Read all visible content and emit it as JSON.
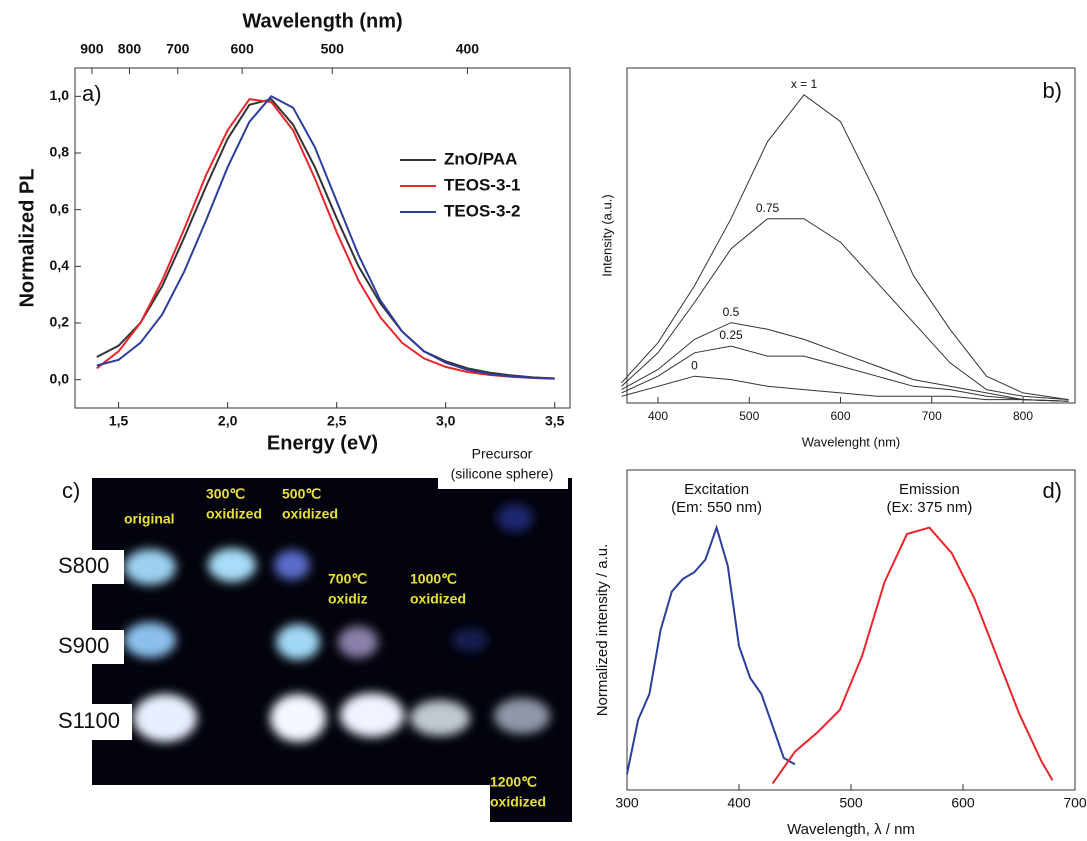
{
  "chart_data": [
    {
      "type": "line",
      "label": "a)",
      "title": "Wavelength (nm)",
      "xlabel": "Energy (eV)",
      "ylabel": "Normalized PL",
      "x": [
        1.4,
        1.5,
        1.6,
        1.7,
        1.8,
        1.9,
        2.0,
        2.1,
        2.2,
        2.3,
        2.4,
        2.5,
        2.6,
        2.7,
        2.8,
        2.9,
        3.0,
        3.1,
        3.2,
        3.3,
        3.4,
        3.5
      ],
      "series": [
        {
          "name": "ZnO/PAA",
          "color": "#333333",
          "values": [
            0.08,
            0.12,
            0.2,
            0.33,
            0.5,
            0.68,
            0.85,
            0.97,
            0.99,
            0.9,
            0.75,
            0.57,
            0.4,
            0.27,
            0.17,
            0.1,
            0.065,
            0.04,
            0.025,
            0.015,
            0.008,
            0.004
          ]
        },
        {
          "name": "TEOS-3-1",
          "color": "#e8262b",
          "values": [
            0.04,
            0.1,
            0.2,
            0.35,
            0.53,
            0.72,
            0.88,
            0.99,
            0.98,
            0.88,
            0.71,
            0.52,
            0.35,
            0.22,
            0.13,
            0.075,
            0.045,
            0.027,
            0.017,
            0.01,
            0.006,
            0.003
          ]
        },
        {
          "name": "TEOS-3-2",
          "color": "#2c3e9c",
          "values": [
            0.05,
            0.07,
            0.13,
            0.23,
            0.38,
            0.56,
            0.75,
            0.91,
            1.0,
            0.96,
            0.82,
            0.63,
            0.44,
            0.28,
            0.17,
            0.1,
            0.06,
            0.035,
            0.02,
            0.012,
            0.007,
            0.004
          ]
        }
      ],
      "xlim": [
        1.3,
        3.57
      ],
      "ylim": [
        -0.1,
        1.1
      ],
      "xticks": [
        {
          "value": 1.5,
          "label": "1,5"
        },
        {
          "value": 2.0,
          "label": "2,0"
        },
        {
          "value": 2.5,
          "label": "2,5"
        },
        {
          "value": 3.0,
          "label": "3,0"
        },
        {
          "value": 3.5,
          "label": "3,5"
        }
      ],
      "yticks": [
        {
          "value": 0,
          "label": "0,0"
        },
        {
          "value": 0.2,
          "label": "0,2"
        },
        {
          "value": 0.4,
          "label": "0,4"
        },
        {
          "value": 0.6,
          "label": "0,6"
        },
        {
          "value": 0.8,
          "label": "0,8"
        },
        {
          "value": 1.0,
          "label": "1,0"
        }
      ],
      "x2ticks": [
        900,
        800,
        700,
        600,
        500,
        400
      ],
      "legend": "center right"
    },
    {
      "type": "line",
      "label": "b)",
      "xlabel": "Wavelenght (nm)",
      "ylabel": "Intensity (a.u.)",
      "x": [
        360,
        400,
        440,
        480,
        520,
        560,
        600,
        640,
        680,
        720,
        760,
        800,
        850
      ],
      "series": [
        {
          "name": "x = 1",
          "color": "#333333",
          "values": [
            6,
            18,
            35,
            55,
            78,
            92,
            84,
            62,
            38,
            22,
            8,
            3,
            1
          ]
        },
        {
          "name": "0.75",
          "color": "#333333",
          "values": [
            5,
            15,
            30,
            46,
            55,
            55,
            48,
            36,
            24,
            12,
            4,
            2,
            1
          ]
        },
        {
          "name": "0.5",
          "color": "#333333",
          "values": [
            4,
            10,
            19,
            24,
            22,
            19,
            15,
            11,
            7,
            5,
            3,
            1,
            0.5
          ]
        },
        {
          "name": "0.25",
          "color": "#333333",
          "values": [
            3,
            8,
            15,
            17,
            14,
            14,
            11,
            8,
            5,
            4,
            2,
            1,
            0.5
          ]
        },
        {
          "name": "0",
          "color": "#333333",
          "values": [
            2,
            5,
            8,
            7,
            5,
            4,
            3,
            2,
            2,
            2,
            1,
            1,
            0.5
          ]
        }
      ],
      "xlim": [
        366,
        857
      ],
      "ylim": [
        0,
        100
      ],
      "xticks": [
        400,
        500,
        600,
        700,
        800
      ],
      "curve_labels": true
    },
    {
      "type": "line",
      "label": "d)",
      "xlabel": "Wavelength, λ / nm",
      "ylabel": "Normalized intensity / a.u.",
      "series": [
        {
          "name": "Excitation",
          "note": "(Em: 550 nm)",
          "color": "#2c3e9c",
          "x": [
            300,
            310,
            320,
            330,
            340,
            350,
            360,
            370,
            380,
            390,
            400,
            410,
            420,
            430,
            440,
            450
          ],
          "values": [
            0.05,
            0.22,
            0.3,
            0.5,
            0.62,
            0.66,
            0.68,
            0.72,
            0.82,
            0.7,
            0.45,
            0.35,
            0.3,
            0.2,
            0.1,
            0.08
          ]
        },
        {
          "name": "Emission",
          "note": "(Ex: 375 nm)",
          "color": "#e8262b",
          "x": [
            430,
            450,
            470,
            490,
            510,
            530,
            550,
            570,
            590,
            610,
            630,
            650,
            670,
            680
          ],
          "values": [
            0.02,
            0.12,
            0.18,
            0.25,
            0.42,
            0.65,
            0.8,
            0.82,
            0.74,
            0.6,
            0.42,
            0.24,
            0.09,
            0.03
          ]
        }
      ],
      "xlim": [
        300,
        700
      ],
      "ylim": [
        0,
        1
      ],
      "xticks": [
        300,
        400,
        500,
        600,
        700
      ]
    }
  ],
  "photo": {
    "label": "c)",
    "rows": [
      "S800",
      "S900",
      "S1100"
    ],
    "columns": [
      [
        "original"
      ],
      [
        "300℃",
        "oxidized"
      ],
      [
        "500℃",
        "oxidized"
      ],
      [
        "700℃",
        "oxidiz"
      ],
      [
        "1000℃",
        "oxidized"
      ],
      [
        "1200℃",
        "oxidized"
      ]
    ],
    "precursor": [
      "Precursor",
      "(silicone sphere)"
    ]
  }
}
